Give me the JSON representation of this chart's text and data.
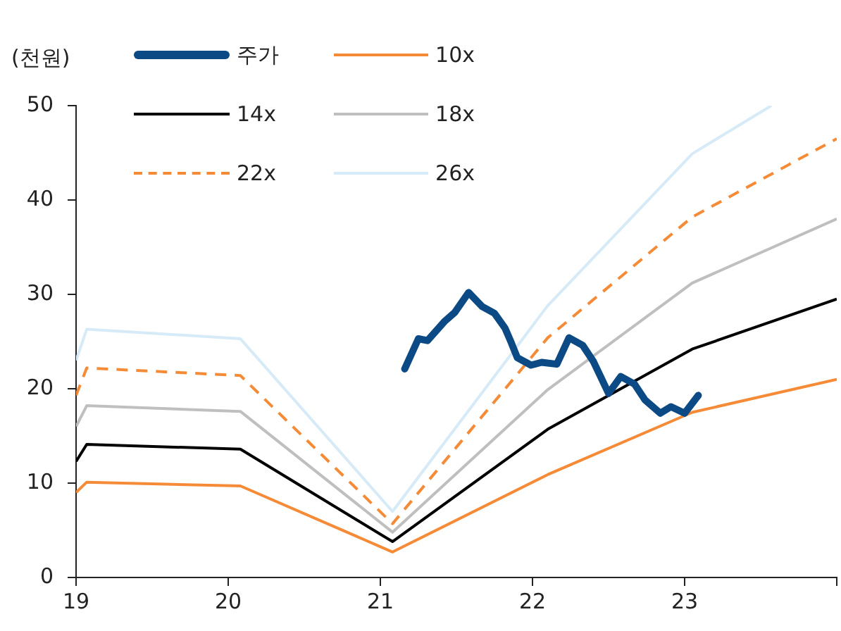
{
  "chart_data": {
    "type": "line",
    "ylabel": "(천원)",
    "xlim": [
      19,
      24
    ],
    "xticks": [
      19,
      20,
      21,
      22,
      23,
      {
        "value": 24,
        "label": null
      }
    ],
    "ylim": [
      0,
      50
    ],
    "yticks": [
      0,
      10,
      20,
      30,
      40,
      50
    ],
    "grid": false,
    "legend": "top left",
    "marker": "none",
    "series": [
      {
        "name": "주가",
        "color": "#0b4a85",
        "x": [
          21.16,
          21.25,
          21.31,
          21.42,
          21.49,
          21.58,
          21.67,
          21.75,
          21.82,
          21.86,
          21.9,
          21.99,
          22.06,
          22.16,
          22.24,
          22.33,
          22.4,
          22.5,
          22.58,
          22.67,
          22.74,
          22.84,
          22.91,
          23.0,
          23.09
        ],
        "values": [
          22.1,
          25.3,
          25.1,
          27.1,
          28.1,
          30.2,
          28.7,
          28.0,
          26.4,
          24.9,
          23.3,
          22.5,
          22.8,
          22.6,
          25.4,
          24.6,
          22.9,
          19.5,
          21.3,
          20.5,
          18.8,
          17.4,
          18.1,
          17.4,
          19.3
        ]
      },
      {
        "name": "10x",
        "color": "#f58b37",
        "x": [
          19,
          19.07,
          20.08,
          21.08,
          22.1,
          23.05,
          24
        ],
        "values": [
          9,
          10.1,
          9.7,
          2.7,
          10.9,
          17.5,
          21.0
        ]
      },
      {
        "name": "14x",
        "color": "#000000",
        "x": [
          19,
          19.07,
          20.08,
          21.08,
          22.1,
          23.05,
          24
        ],
        "values": [
          12.3,
          14.1,
          13.6,
          3.8,
          15.7,
          24.2,
          29.5
        ]
      },
      {
        "name": "18x",
        "color": "#bfbfbf",
        "x": [
          19,
          19.07,
          20.08,
          21.08,
          22.1,
          23.05,
          24
        ],
        "values": [
          16,
          18.2,
          17.6,
          4.8,
          19.9,
          31.2,
          38.0
        ]
      },
      {
        "name": "22x",
        "color": "#f58b37",
        "line_style": "dashed",
        "x": [
          19,
          19.07,
          20.08,
          21.08,
          22.1,
          23.05,
          24
        ],
        "values": [
          19.3,
          22.2,
          21.4,
          5.7,
          25.4,
          38.2,
          46.5
        ]
      },
      {
        "name": "26x",
        "color": "#d6eaf8",
        "x": [
          19,
          19.07,
          20.08,
          21.08,
          22.1,
          23.05,
          23.57
        ],
        "values": [
          23,
          26.3,
          25.3,
          7.0,
          28.8,
          44.9,
          50
        ]
      }
    ]
  }
}
